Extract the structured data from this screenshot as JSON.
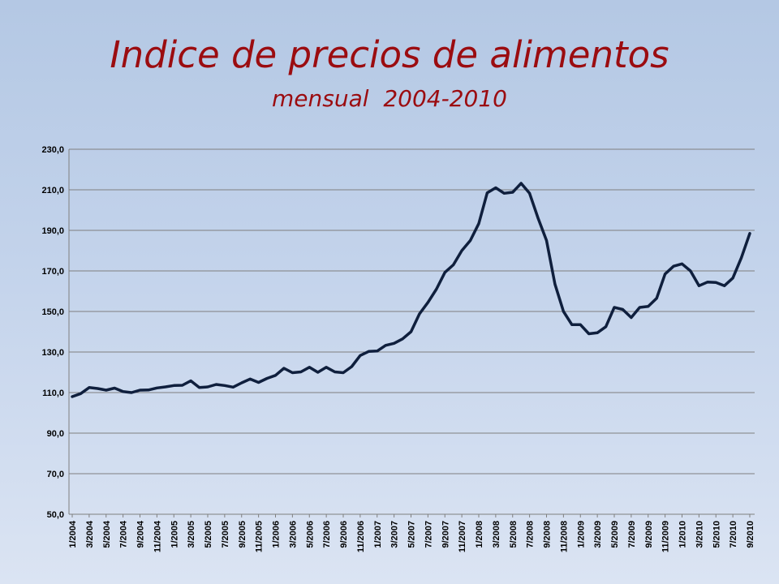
{
  "title": "Indice de precios de alimentos",
  "subtitle": "mensual  2004-2010",
  "colors": {
    "title": "#9b0c10",
    "line": "#0f1f3d",
    "grid": "#7f7f7f"
  },
  "chart_data": {
    "type": "line",
    "title": "",
    "xlabel": "",
    "ylabel": "",
    "ylim": [
      50,
      230
    ],
    "yticks": [
      "50,0",
      "70,0",
      "90,0",
      "110,0",
      "130,0",
      "150,0",
      "170,0",
      "190,0",
      "210,0",
      "230,0"
    ],
    "grid": true,
    "legend": "none",
    "tick_labels": [
      "1/2004",
      "3/2004",
      "5/2004",
      "7/2004",
      "9/2004",
      "11/2004",
      "1/2005",
      "3/2005",
      "5/2005",
      "7/2005",
      "9/2005",
      "11/2005",
      "1/2006",
      "3/2006",
      "5/2006",
      "7/2006",
      "9/2006",
      "11/2006",
      "1/2007",
      "3/2007",
      "5/2007",
      "7/2007",
      "9/2007",
      "11/2007",
      "1/2008",
      "3/2008",
      "5/2008",
      "7/2008",
      "9/2008",
      "11/2008",
      "1/2009",
      "3/2009",
      "5/2009",
      "7/2009",
      "9/2009",
      "11/2009",
      "1/2010",
      "3/2010",
      "5/2010",
      "7/2010",
      "9/2010"
    ],
    "x": [
      "1/2004",
      "2/2004",
      "3/2004",
      "4/2004",
      "5/2004",
      "6/2004",
      "7/2004",
      "8/2004",
      "9/2004",
      "10/2004",
      "11/2004",
      "12/2004",
      "1/2005",
      "2/2005",
      "3/2005",
      "4/2005",
      "5/2005",
      "6/2005",
      "7/2005",
      "8/2005",
      "9/2005",
      "10/2005",
      "11/2005",
      "12/2005",
      "1/2006",
      "2/2006",
      "3/2006",
      "4/2006",
      "5/2006",
      "6/2006",
      "7/2006",
      "8/2006",
      "9/2006",
      "10/2006",
      "11/2006",
      "12/2006",
      "1/2007",
      "2/2007",
      "3/2007",
      "4/2007",
      "5/2007",
      "6/2007",
      "7/2007",
      "8/2007",
      "9/2007",
      "10/2007",
      "11/2007",
      "12/2007",
      "1/2008",
      "2/2008",
      "3/2008",
      "4/2008",
      "5/2008",
      "6/2008",
      "7/2008",
      "8/2008",
      "9/2008",
      "10/2008",
      "11/2008",
      "12/2008",
      "1/2009",
      "2/2009",
      "3/2009",
      "4/2009",
      "5/2009",
      "6/2009",
      "7/2009",
      "8/2009",
      "9/2009",
      "10/2009",
      "11/2009",
      "12/2009",
      "1/2010",
      "2/2010",
      "3/2010",
      "4/2010",
      "5/2010",
      "6/2010",
      "7/2010",
      "8/2010",
      "9/2010"
    ],
    "series": [
      {
        "values": [
          108.0,
          109.5,
          112.5,
          112.0,
          111.2,
          112.2,
          110.5,
          110.0,
          111.2,
          111.3,
          112.3,
          112.8,
          113.5,
          113.6,
          115.8,
          112.5,
          112.8,
          114.0,
          113.5,
          112.7,
          114.8,
          116.7,
          115.0,
          117.0,
          118.5,
          122.0,
          119.8,
          120.2,
          122.5,
          120.0,
          122.5,
          120.2,
          119.8,
          122.8,
          128.3,
          130.3,
          130.5,
          133.3,
          134.3,
          136.5,
          140.0,
          148.8,
          154.5,
          161.0,
          169.3,
          173.0,
          180.0,
          185.0,
          193.3,
          208.5,
          211.0,
          208.3,
          208.8,
          213.2,
          208.3,
          196.0,
          185.0,
          163.5,
          150.0,
          143.5,
          143.5,
          139.0,
          139.5,
          142.5,
          152.0,
          151.0,
          147.0,
          152.0,
          152.5,
          156.5,
          168.5,
          172.3,
          173.5,
          170.0,
          162.7,
          164.5,
          164.3,
          162.7,
          166.5,
          176.5,
          188.5
        ]
      }
    ]
  }
}
